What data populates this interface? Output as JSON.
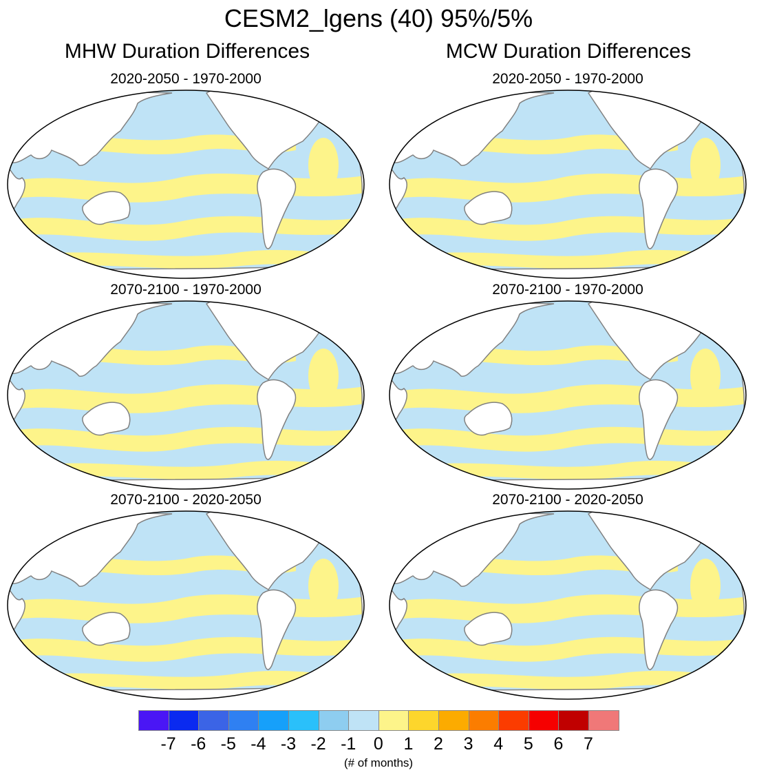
{
  "figure": {
    "title": "CESM2_lgens (40) 95%/5%",
    "columns": [
      {
        "title": "MHW Duration Differences"
      },
      {
        "title": "MCW Duration Differences"
      }
    ],
    "panels": [
      {
        "title": "2020-2050 - 1970-2000",
        "column": 0,
        "row": 0
      },
      {
        "title": "2020-2050 - 1970-2000",
        "column": 1,
        "row": 0
      },
      {
        "title": "2070-2100 - 1970-2000",
        "column": 0,
        "row": 1
      },
      {
        "title": "2070-2100 - 1970-2000",
        "column": 1,
        "row": 1
      },
      {
        "title": "2070-2100 - 2020-2050",
        "column": 0,
        "row": 2
      },
      {
        "title": "2070-2100 - 2020-2050",
        "column": 1,
        "row": 2
      }
    ]
  },
  "colorbar": {
    "labels": [
      "-7",
      "-6",
      "-5",
      "-4",
      "-3",
      "-2",
      "-1",
      "0",
      "1",
      "2",
      "3",
      "4",
      "5",
      "6",
      "7"
    ],
    "colors": [
      "#4a16f5",
      "#0a2af0",
      "#3b64e6",
      "#2f80f2",
      "#16a0fa",
      "#2ac0fa",
      "#8ecdf0",
      "#bfe3f6",
      "#fdf48a",
      "#fdd62c",
      "#fcab00",
      "#fb7d00",
      "#fb3c00",
      "#f60000",
      "#c00000",
      "#f07878"
    ],
    "units": "(# of months)"
  },
  "colors": {
    "ocean_negative": "#bfe3f6",
    "ocean_positive": "#fdf48a",
    "land": "#ffffff",
    "coastline": "#808080"
  }
}
